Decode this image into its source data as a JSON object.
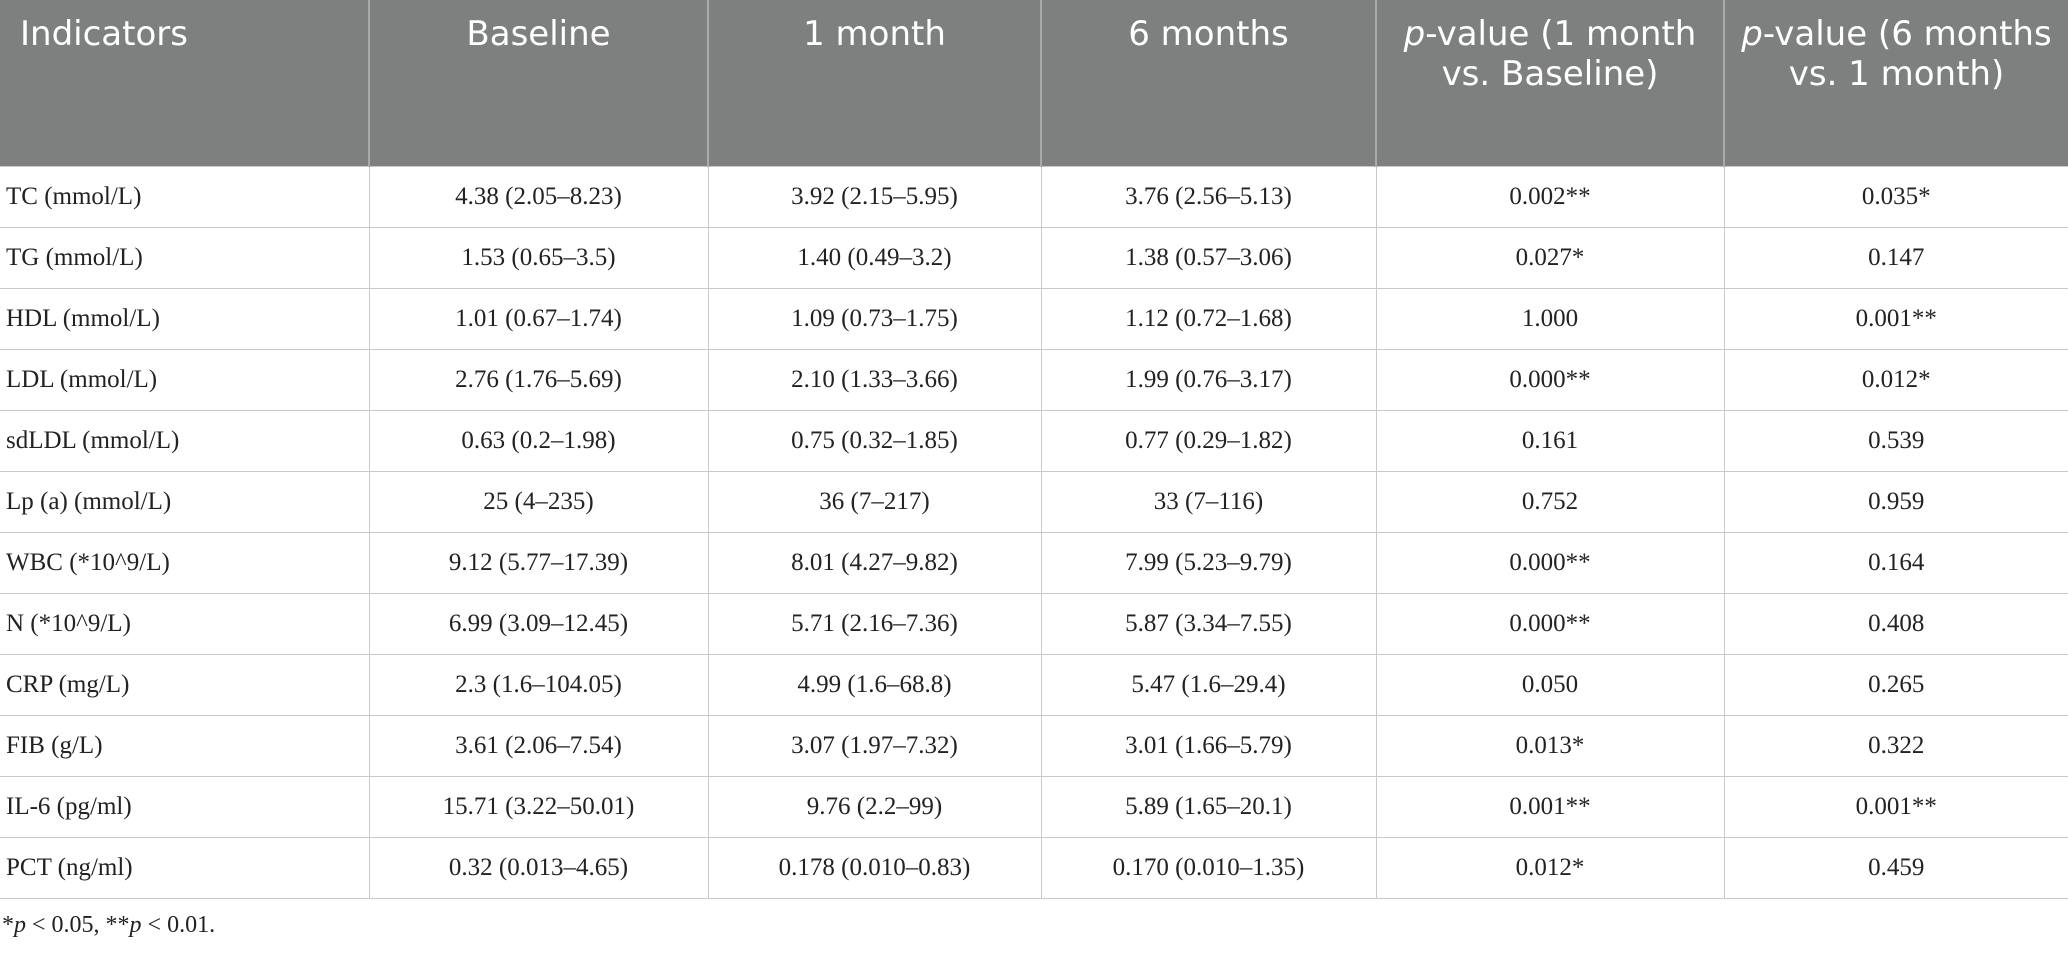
{
  "table": {
    "header": [
      [
        "Indicators"
      ],
      [
        "Baseline"
      ],
      [
        "1 month"
      ],
      [
        "6 months"
      ],
      [
        "p",
        "-value (1 month vs. Baseline)"
      ],
      [
        "p",
        "-value (6 months vs. 1 month)"
      ]
    ],
    "rows": [
      [
        "TC (mmol/L)",
        "4.38 (2.05–8.23)",
        "3.92 (2.15–5.95)",
        "3.76 (2.56–5.13)",
        "0.002**",
        "0.035*"
      ],
      [
        "TG (mmol/L)",
        "1.53 (0.65–3.5)",
        "1.40 (0.49–3.2)",
        "1.38 (0.57–3.06)",
        "0.027*",
        "0.147"
      ],
      [
        "HDL (mmol/L)",
        "1.01 (0.67–1.74)",
        "1.09 (0.73–1.75)",
        "1.12 (0.72–1.68)",
        "1.000",
        "0.001**"
      ],
      [
        "LDL (mmol/L)",
        "2.76 (1.76–5.69)",
        "2.10 (1.33–3.66)",
        "1.99 (0.76–3.17)",
        "0.000**",
        "0.012*"
      ],
      [
        "sdLDL (mmol/L)",
        "0.63 (0.2–1.98)",
        "0.75 (0.32–1.85)",
        "0.77 (0.29–1.82)",
        "0.161",
        "0.539"
      ],
      [
        "Lp (a) (mmol/L)",
        "25 (4–235)",
        "36 (7–217)",
        "33 (7–116)",
        "0.752",
        "0.959"
      ],
      [
        "WBC (*10^9/L)",
        "9.12 (5.77–17.39)",
        "8.01 (4.27–9.82)",
        "7.99 (5.23–9.79)",
        "0.000**",
        "0.164"
      ],
      [
        "N (*10^9/L)",
        "6.99 (3.09–12.45)",
        "5.71 (2.16–7.36)",
        "5.87 (3.34–7.55)",
        "0.000**",
        "0.408"
      ],
      [
        "CRP (mg/L)",
        "2.3 (1.6–104.05)",
        "4.99 (1.6–68.8)",
        "5.47 (1.6–29.4)",
        "0.050",
        "0.265"
      ],
      [
        "FIB (g/L)",
        "3.61 (2.06–7.54)",
        "3.07 (1.97–7.32)",
        "3.01 (1.66–5.79)",
        "0.013*",
        "0.322"
      ],
      [
        "IL-6 (pg/ml)",
        "15.71 (3.22–50.01)",
        "9.76 (2.2–99)",
        "5.89 (1.65–20.1)",
        "0.001**",
        "0.001**"
      ],
      [
        "PCT (ng/ml)",
        "0.32 (0.013–4.65)",
        "0.178 (0.010–0.83)",
        "0.170 (0.010–1.35)",
        "0.012*",
        "0.459"
      ]
    ],
    "footnote": [
      "*",
      "p",
      " < 0.05, **",
      "p",
      " < 0.01."
    ]
  }
}
